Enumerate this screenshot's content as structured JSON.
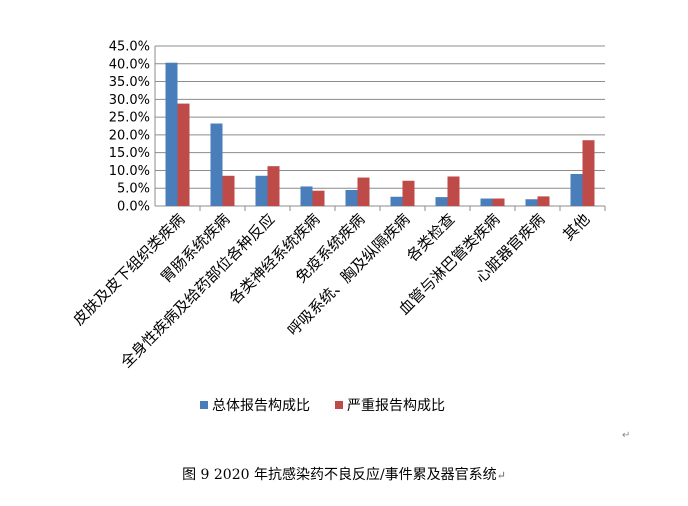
{
  "chart_data": {
    "type": "bar",
    "categories": [
      "皮肤及皮下组织类疾病",
      "胃肠系统疾病",
      "全身性疾病及给药部位各种反应",
      "各类神经系统疾病",
      "免疫系统疾病",
      "呼吸系统、胸及纵隔疾病",
      "各类检查",
      "血管与淋巴管类疾病",
      "心脏器官疾病",
      "其他"
    ],
    "series": [
      {
        "name": "总体报告构成比",
        "values": [
          40.3,
          23.2,
          8.5,
          5.5,
          4.5,
          2.6,
          2.5,
          2.1,
          1.9,
          9.0
        ],
        "color": "#4A7EBB"
      },
      {
        "name": "严重报告构成比",
        "values": [
          28.8,
          8.5,
          11.2,
          4.3,
          8.0,
          7.1,
          8.3,
          2.1,
          2.7,
          18.5
        ],
        "color": "#BE4B48"
      }
    ],
    "yticks": [
      "0.0%",
      "5.0%",
      "10.0%",
      "15.0%",
      "20.0%",
      "25.0%",
      "30.0%",
      "35.0%",
      "40.0%",
      "45.0%"
    ],
    "ylim": [
      0,
      45
    ],
    "grid": true,
    "legend_position": "bottom"
  },
  "caption": "图 9   2020 年抗感染药不良反应/事件累及器官系统",
  "caption_mark": "↵",
  "side_mark": "↵"
}
